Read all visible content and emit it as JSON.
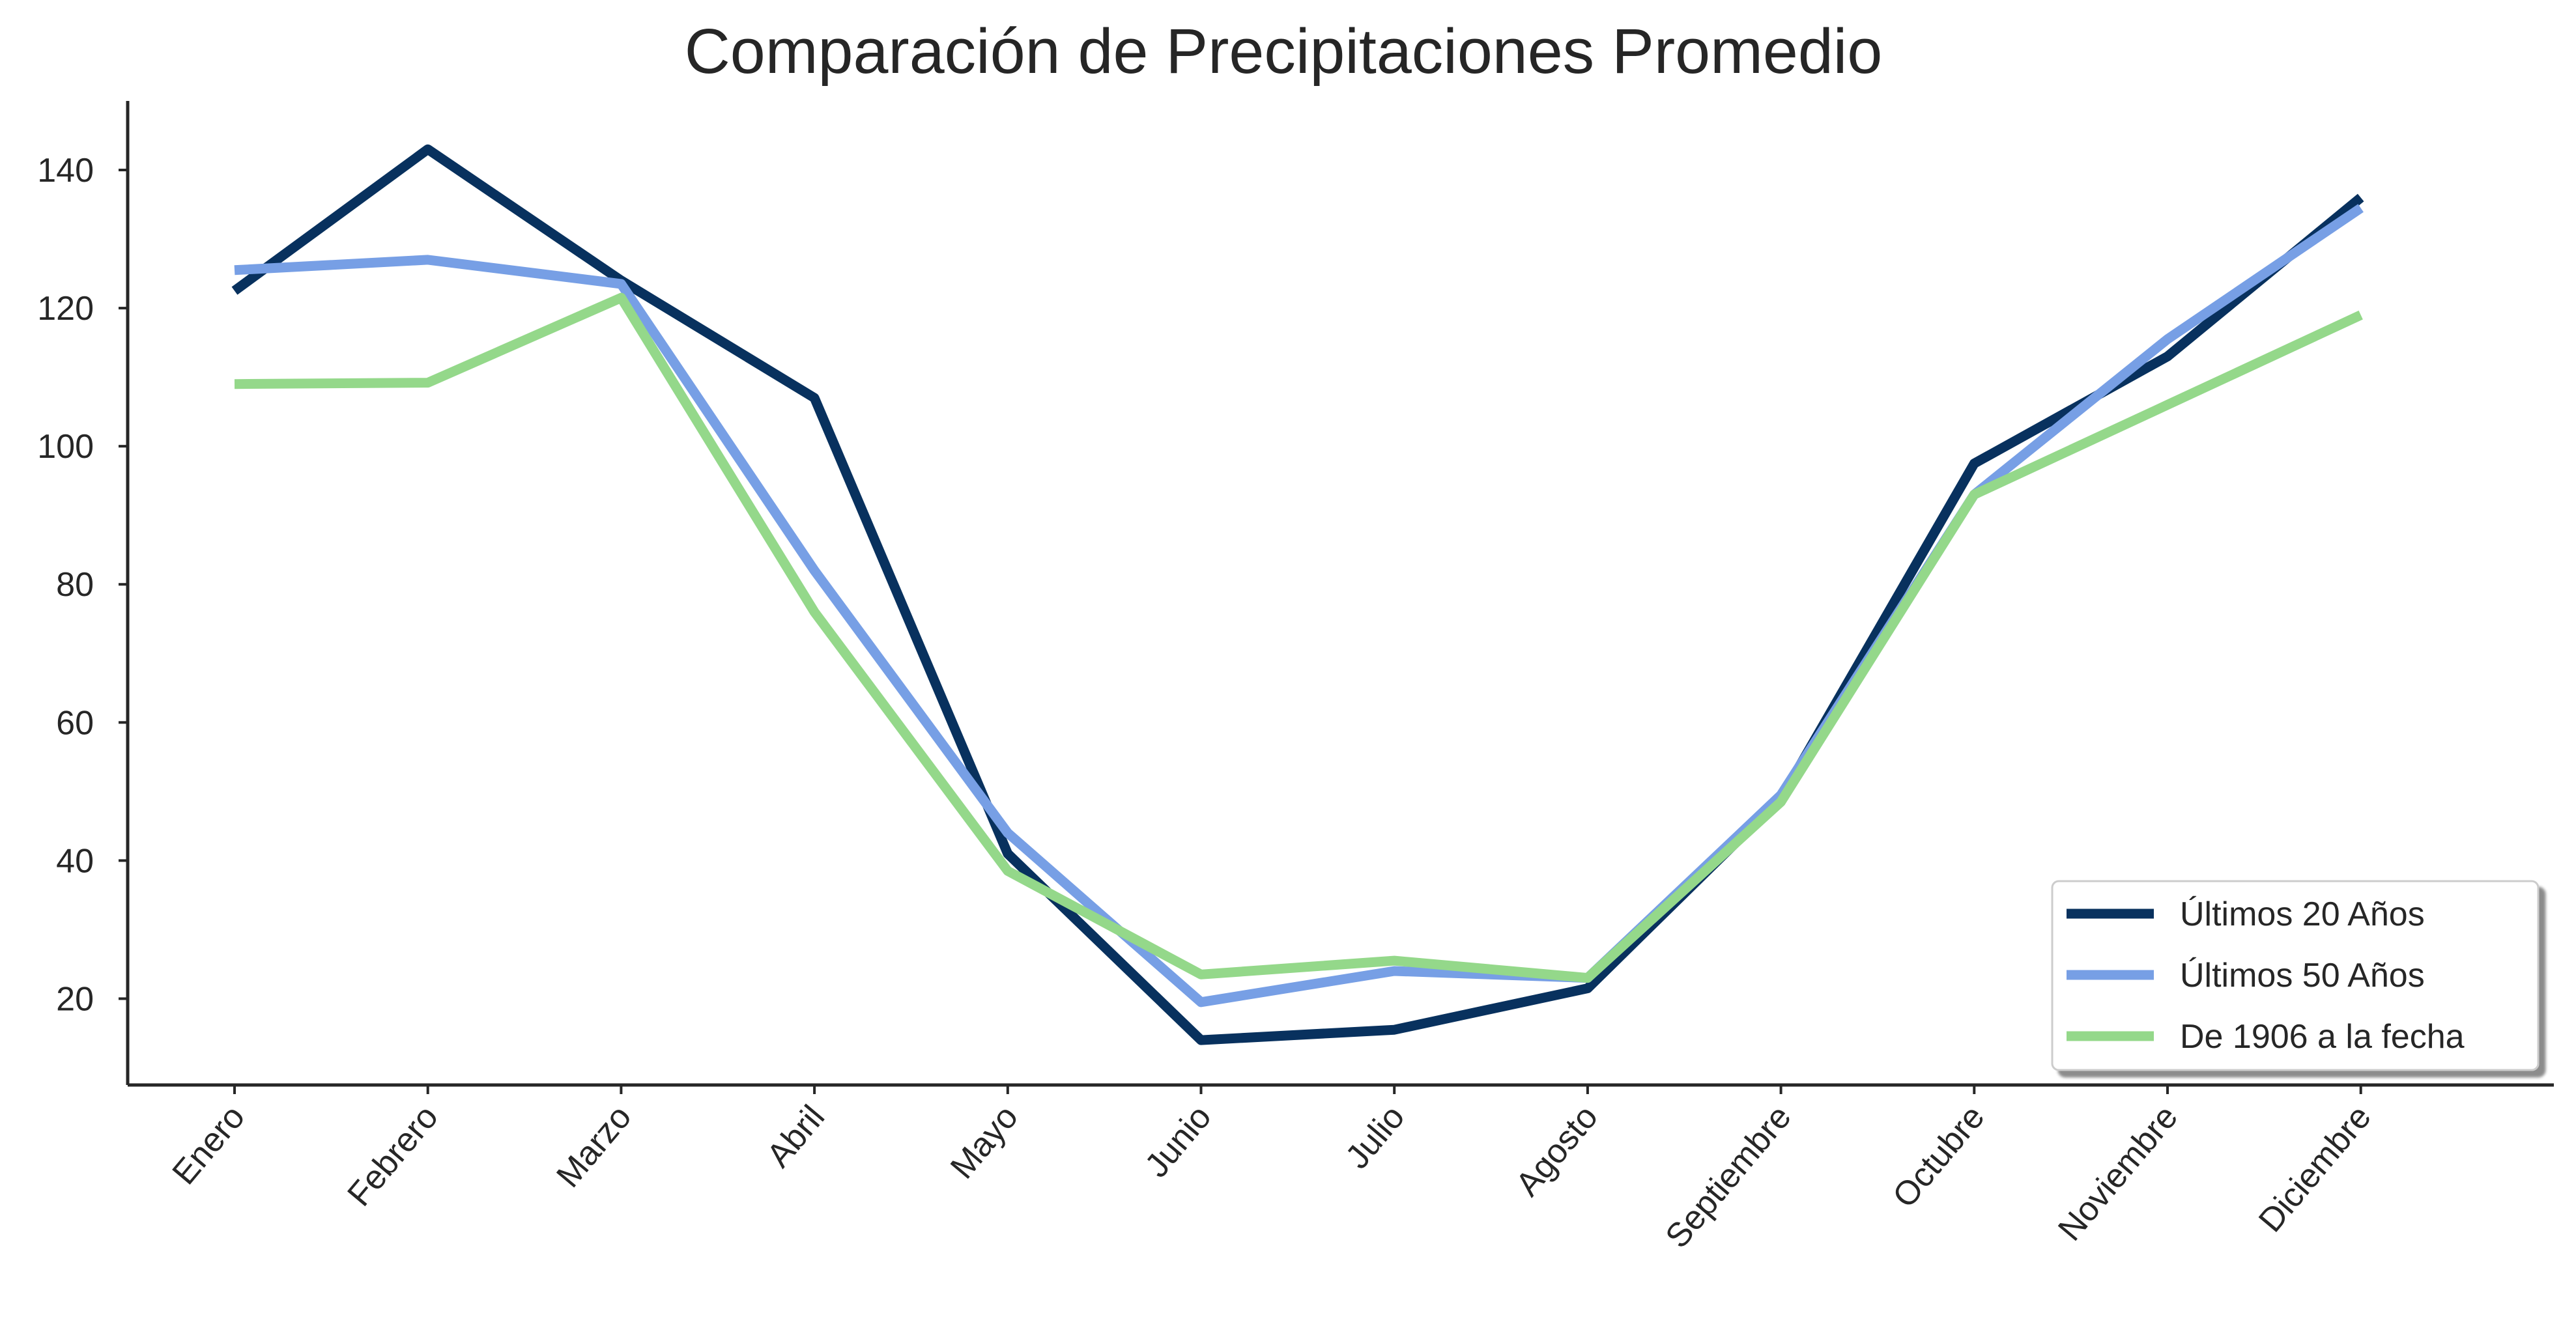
{
  "chart_data": {
    "type": "line",
    "title": "Comparación de Precipitaciones Promedio",
    "xlabel": "",
    "ylabel": "",
    "categories": [
      "Enero",
      "Febrero",
      "Marzo",
      "Abril",
      "Mayo",
      "Junio",
      "Julio",
      "Agosto",
      "Septiembre",
      "Octubre",
      "Noviembre",
      "Diciembre"
    ],
    "ylim": [
      7.5,
      150
    ],
    "yticks": [
      20,
      40,
      60,
      80,
      100,
      120,
      140
    ],
    "grid": false,
    "legend_position": "lower-right",
    "series": [
      {
        "name": "Últimos 20 Años",
        "color": "#08315e",
        "values": [
          122.5,
          143.0,
          124.0,
          107.0,
          41.0,
          14.0,
          15.5,
          21.5,
          49.0,
          97.5,
          113.0,
          136.0
        ]
      },
      {
        "name": "Últimos 50 Años",
        "color": "#779fe5",
        "values": [
          125.5,
          127.0,
          123.5,
          82.0,
          44.0,
          19.5,
          24.0,
          23.0,
          49.5,
          93.0,
          115.5,
          134.5
        ]
      },
      {
        "name": "De 1906 a la fecha",
        "color": "#94d88a",
        "values": [
          109.0,
          109.2,
          121.5,
          76.0,
          38.5,
          23.5,
          25.5,
          23.0,
          48.5,
          93.0,
          106.0,
          119.0
        ]
      }
    ]
  }
}
